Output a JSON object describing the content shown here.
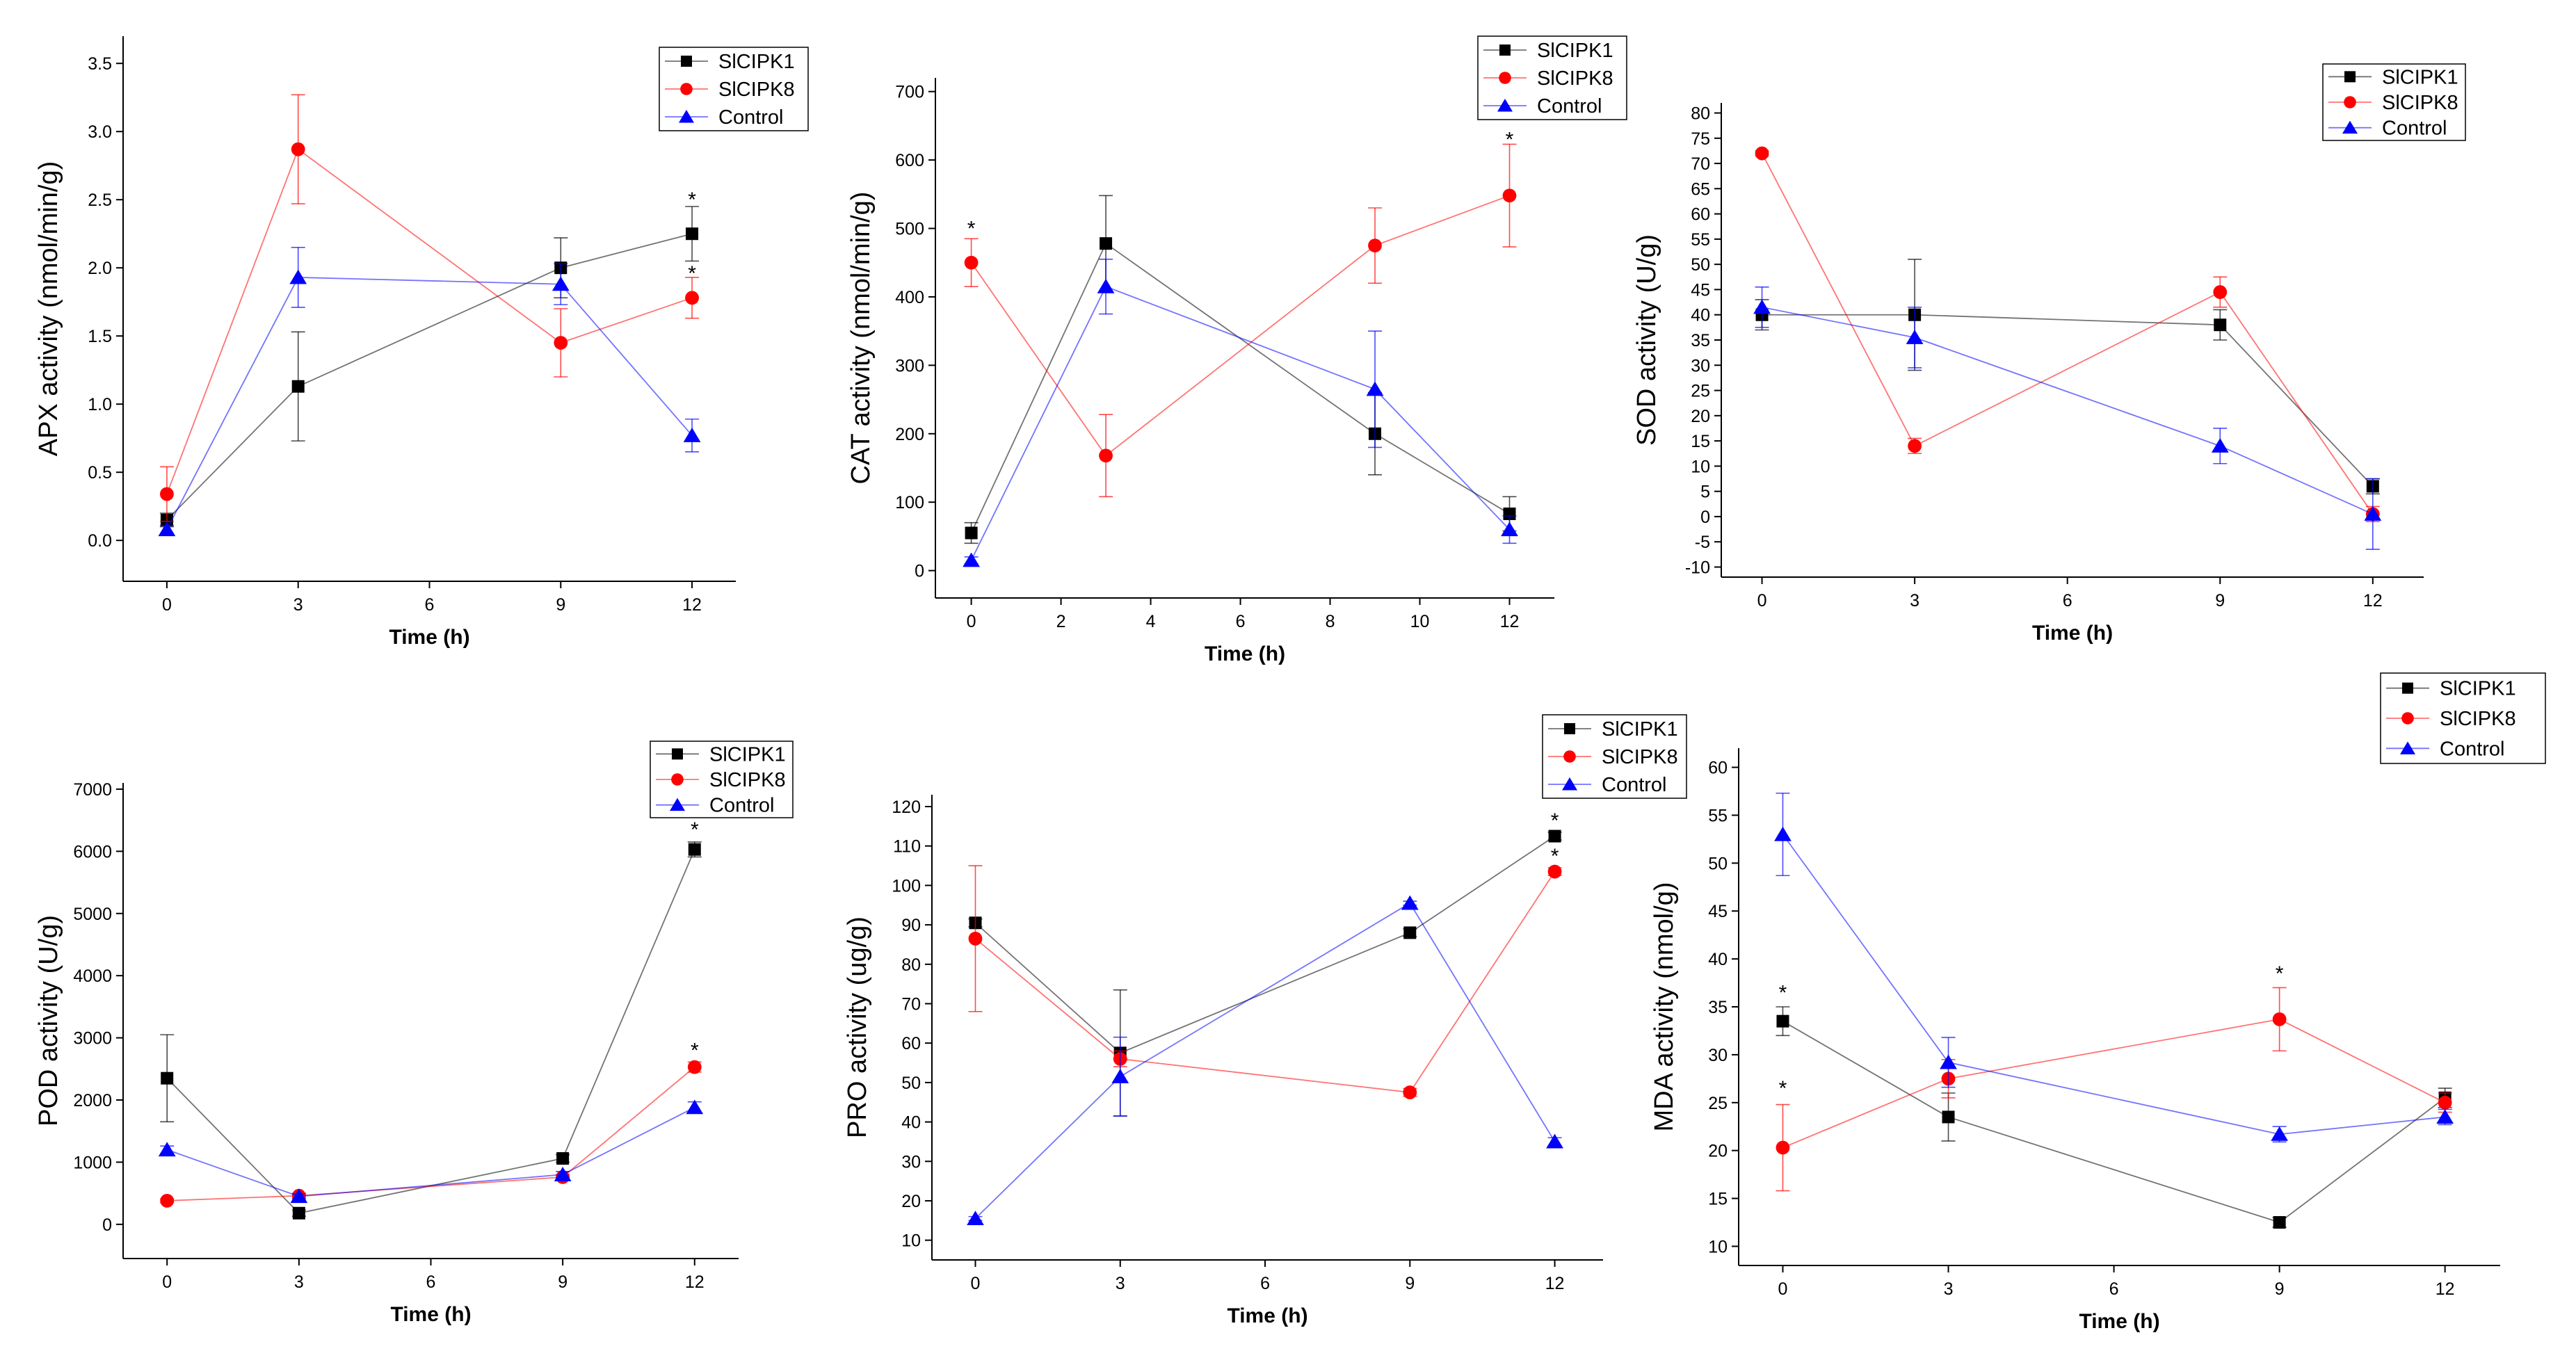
{
  "chart_data": [
    {
      "type": "line",
      "title": "",
      "xlabel": "Time (h)",
      "ylabel": "APX activity (nmol/min/g)",
      "x": [
        0,
        3,
        9,
        12
      ],
      "xticks": [
        "0",
        "3",
        "6",
        "9",
        "12"
      ],
      "xlim": [
        -1,
        13
      ],
      "ylim": [
        -0.3,
        3.7
      ],
      "yticks": [
        "0.0",
        "0.5",
        "1.0",
        "1.5",
        "2.0",
        "2.5",
        "3.0",
        "3.5"
      ],
      "legend_position": "top-right",
      "series": [
        {
          "name": "SlCIPK1",
          "color": "#000000",
          "marker": "square",
          "values": [
            0.15,
            1.13,
            2.0,
            2.25
          ],
          "errors": [
            0.05,
            0.4,
            0.22,
            0.2
          ]
        },
        {
          "name": "SlCIPK8",
          "color": "#ff0000",
          "marker": "circle",
          "values": [
            0.34,
            2.87,
            1.45,
            1.78
          ],
          "errors": [
            0.2,
            0.4,
            0.25,
            0.15
          ]
        },
        {
          "name": "Control",
          "color": "#0000ff",
          "marker": "triangle",
          "values": [
            0.08,
            1.93,
            1.88,
            0.77
          ],
          "errors": [
            0.03,
            0.22,
            0.15,
            0.12
          ]
        }
      ],
      "annotations": [
        {
          "x": 12,
          "y": 2.5,
          "text": "*"
        },
        {
          "x": 12,
          "y": 1.96,
          "text": "*"
        }
      ]
    },
    {
      "type": "line",
      "title": "",
      "xlabel": "Time (h)",
      "ylabel": "CAT activity (nmol/min/g)",
      "x": [
        0,
        3,
        9,
        12
      ],
      "xticks": [
        "0",
        "2",
        "4",
        "6",
        "8",
        "10",
        "12"
      ],
      "xlim": [
        -0.8,
        13
      ],
      "ylim": [
        -40,
        720
      ],
      "yticks": [
        "0",
        "100",
        "200",
        "300",
        "400",
        "500",
        "600",
        "700"
      ],
      "legend_position": "top-right",
      "series": [
        {
          "name": "SlCIPK1",
          "color": "#000000",
          "marker": "square",
          "values": [
            55,
            478,
            200,
            83
          ],
          "errors": [
            15,
            70,
            60,
            25
          ]
        },
        {
          "name": "SlCIPK8",
          "color": "#ff0000",
          "marker": "circle",
          "values": [
            450,
            168,
            475,
            548
          ],
          "errors": [
            35,
            60,
            55,
            75
          ]
        },
        {
          "name": "Control",
          "color": "#0000ff",
          "marker": "triangle",
          "values": [
            15,
            415,
            265,
            60
          ],
          "errors": [
            5,
            40,
            85,
            20
          ]
        }
      ],
      "annotations": [
        {
          "x": 0,
          "y": 500,
          "text": "*"
        },
        {
          "x": 12,
          "y": 630,
          "text": "*"
        }
      ]
    },
    {
      "type": "line",
      "title": "",
      "xlabel": "Time (h)",
      "ylabel": "SOD activity (U/g)",
      "x": [
        0,
        3,
        9,
        12
      ],
      "xticks": [
        "0",
        "3",
        "6",
        "9",
        "12"
      ],
      "xlim": [
        -0.8,
        13
      ],
      "ylim": [
        -12,
        82
      ],
      "yticks": [
        "-10",
        "-5",
        "0",
        "5",
        "10",
        "15",
        "20",
        "25",
        "30",
        "35",
        "40",
        "45",
        "50",
        "55",
        "60",
        "65",
        "70",
        "75",
        "80"
      ],
      "legend_position": "top-right",
      "series": [
        {
          "name": "SlCIPK1",
          "color": "#000000",
          "marker": "square",
          "values": [
            40,
            40,
            38,
            6
          ],
          "errors": [
            3,
            11,
            3,
            1.5
          ]
        },
        {
          "name": "SlCIPK8",
          "color": "#ff0000",
          "marker": "circle",
          "values": [
            72,
            14,
            44.5,
            0.5
          ],
          "errors": [
            0.5,
            1.5,
            3,
            1.5
          ]
        },
        {
          "name": "Control",
          "color": "#0000ff",
          "marker": "triangle",
          "values": [
            41.5,
            35.5,
            14,
            0.5
          ],
          "errors": [
            4,
            6,
            3.5,
            7
          ]
        }
      ],
      "annotations": []
    },
    {
      "type": "line",
      "title": "",
      "xlabel": "Time (h)",
      "ylabel": "POD activity (U/g)",
      "x": [
        0,
        3,
        9,
        12
      ],
      "xticks": [
        "0",
        "3",
        "6",
        "9",
        "12"
      ],
      "xlim": [
        -1,
        13
      ],
      "ylim": [
        -550,
        7100
      ],
      "yticks": [
        "0",
        "1000",
        "2000",
        "3000",
        "4000",
        "5000",
        "6000",
        "7000"
      ],
      "legend_position": "top-right",
      "series": [
        {
          "name": "SlCIPK1",
          "color": "#000000",
          "marker": "square",
          "values": [
            2350,
            180,
            1060,
            6030
          ],
          "errors": [
            700,
            50,
            60,
            120
          ]
        },
        {
          "name": "SlCIPK8",
          "color": "#ff0000",
          "marker": "circle",
          "values": [
            380,
            460,
            760,
            2530
          ],
          "errors": [
            30,
            40,
            40,
            80
          ]
        },
        {
          "name": "Control",
          "color": "#0000ff",
          "marker": "triangle",
          "values": [
            1200,
            450,
            800,
            1880
          ],
          "errors": [
            60,
            40,
            50,
            90
          ]
        }
      ],
      "annotations": [
        {
          "x": 12,
          "y": 6350,
          "text": "*"
        },
        {
          "x": 12,
          "y": 2800,
          "text": "*"
        }
      ]
    },
    {
      "type": "line",
      "title": "",
      "xlabel": "Time (h)",
      "ylabel": "PRO activity (ug/g)",
      "x": [
        0,
        3,
        9,
        12
      ],
      "xticks": [
        "0",
        "3",
        "6",
        "9",
        "12"
      ],
      "xlim": [
        -0.9,
        13
      ],
      "ylim": [
        5,
        123
      ],
      "yticks": [
        "10",
        "20",
        "30",
        "40",
        "50",
        "60",
        "70",
        "80",
        "90",
        "100",
        "110",
        "120"
      ],
      "legend_position": "top-right",
      "series": [
        {
          "name": "SlCIPK1",
          "color": "#000000",
          "marker": "square",
          "values": [
            90.5,
            57.5,
            88,
            112.5
          ],
          "errors": [
            1,
            16,
            1,
            1
          ]
        },
        {
          "name": "SlCIPK8",
          "color": "#ff0000",
          "marker": "circle",
          "values": [
            86.5,
            56,
            47.5,
            103.5
          ],
          "errors": [
            18.5,
            2,
            1,
            1
          ]
        },
        {
          "name": "Control",
          "color": "#0000ff",
          "marker": "triangle",
          "values": [
            15.5,
            51.5,
            95.5,
            35
          ],
          "errors": [
            0.5,
            10,
            0.5,
            1
          ]
        }
      ],
      "annotations": [
        {
          "x": 12,
          "y": 116.5,
          "text": "*"
        },
        {
          "x": 12,
          "y": 107.5,
          "text": "*"
        }
      ]
    },
    {
      "type": "line",
      "title": "",
      "xlabel": "Time (h)",
      "ylabel": "MDA activity (nmol/g)",
      "x": [
        0,
        3,
        9,
        12
      ],
      "xticks": [
        "0",
        "3",
        "6",
        "9",
        "12"
      ],
      "xlim": [
        -0.8,
        13
      ],
      "ylim": [
        8,
        62
      ],
      "yticks": [
        "10",
        "15",
        "20",
        "25",
        "30",
        "35",
        "40",
        "45",
        "50",
        "55",
        "60"
      ],
      "legend_position": "top-right",
      "series": [
        {
          "name": "SlCIPK1",
          "color": "#000000",
          "marker": "square",
          "values": [
            33.5,
            23.5,
            12.5,
            25.5
          ],
          "errors": [
            1.5,
            2.5,
            0.5,
            1
          ]
        },
        {
          "name": "SlCIPK8",
          "color": "#ff0000",
          "marker": "circle",
          "values": [
            20.3,
            27.5,
            33.7,
            25
          ],
          "errors": [
            4.5,
            2,
            3.3,
            1
          ]
        },
        {
          "name": "Control",
          "color": "#0000ff",
          "marker": "triangle",
          "values": [
            53,
            29.2,
            21.7,
            23.5
          ],
          "errors": [
            4.3,
            2.6,
            0.8,
            0.8
          ]
        }
      ],
      "annotations": [
        {
          "x": 0,
          "y": 36.5,
          "text": "*"
        },
        {
          "x": 0,
          "y": 26.5,
          "text": "*"
        },
        {
          "x": 9,
          "y": 38.5,
          "text": "*"
        }
      ]
    }
  ]
}
